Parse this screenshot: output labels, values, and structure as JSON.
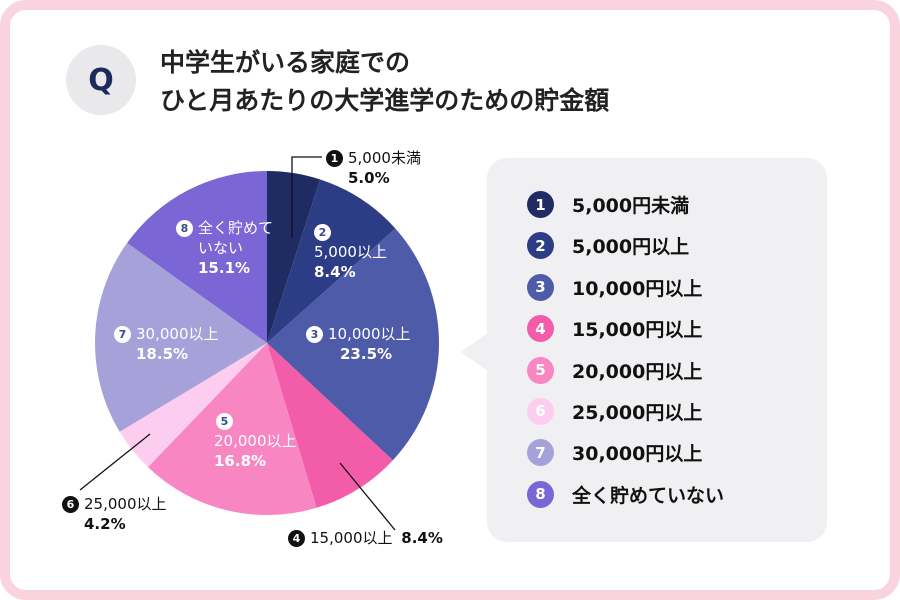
{
  "header": {
    "badge": "Q",
    "title_line1": "中学生がいる家庭での",
    "title_line2": "ひと月あたりの大学進学のための貯金額"
  },
  "chart_data": {
    "type": "pie",
    "title": "中学生がいる家庭での ひと月あたりの大学進学のための貯金額",
    "unit": "%",
    "start": "12 o'clock, clockwise",
    "slices": [
      {
        "num": "1",
        "label": "5,000円未満",
        "pie_label": "5,000未満",
        "value": 5.0,
        "pct": "5.0%",
        "color": "#1f2c64"
      },
      {
        "num": "2",
        "label": "5,000円以上",
        "pie_label": "5,000以上",
        "value": 8.4,
        "pct": "8.4%",
        "color": "#2d3d85"
      },
      {
        "num": "3",
        "label": "10,000円以上",
        "pie_label": "10,000以上",
        "value": 23.5,
        "pct": "23.5%",
        "color": "#4e5ba8"
      },
      {
        "num": "4",
        "label": "15,000円以上",
        "pie_label": "15,000以上",
        "value": 8.4,
        "pct": "8.4%",
        "color": "#f25ca8"
      },
      {
        "num": "5",
        "label": "20,000円以上",
        "pie_label": "20,000以上",
        "value": 16.8,
        "pct": "16.8%",
        "color": "#f786c3"
      },
      {
        "num": "6",
        "label": "25,000円以上",
        "pie_label": "25,000以上",
        "value": 4.2,
        "pct": "4.2%",
        "color": "#fdcdf0"
      },
      {
        "num": "7",
        "label": "30,000円以上",
        "pie_label": "30,000以上",
        "value": 18.5,
        "pct": "18.5%",
        "color": "#a6a2d9"
      },
      {
        "num": "8",
        "label": "全く貯めていない",
        "pie_label_line1": "全く貯めて",
        "pie_label_line2": "いない",
        "value": 15.1,
        "pct": "15.1%",
        "color": "#7a66d4"
      }
    ]
  }
}
